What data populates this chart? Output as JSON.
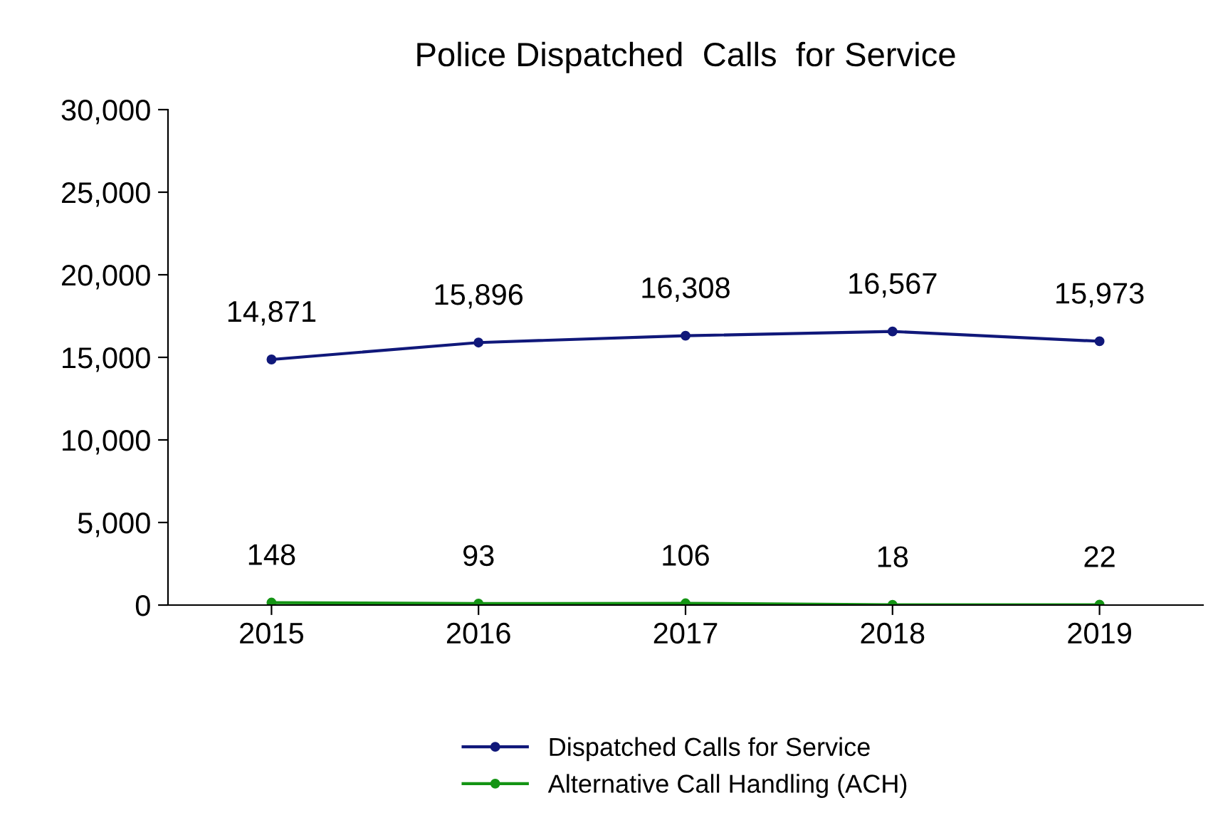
{
  "chart_data": {
    "type": "line",
    "title": "Police Dispatched  Calls  for Service",
    "categories": [
      "2015",
      "2016",
      "2017",
      "2018",
      "2019"
    ],
    "series": [
      {
        "name": "Dispatched Calls for Service",
        "color": "#10187a",
        "values": [
          14871,
          15896,
          16308,
          16567,
          15973
        ],
        "value_labels": [
          "14,871",
          "15,896",
          "16,308",
          "16,567",
          "15,973"
        ]
      },
      {
        "name": "Alternative Call Handling (ACH)",
        "color": "#149414",
        "values": [
          148,
          93,
          106,
          18,
          22
        ],
        "value_labels": [
          "148",
          "93",
          "106",
          "18",
          "22"
        ]
      }
    ],
    "ylim": [
      0,
      30000
    ],
    "yticks": [
      {
        "value": 0,
        "label": "0"
      },
      {
        "value": 5000,
        "label": "5,000"
      },
      {
        "value": 10000,
        "label": "10,000"
      },
      {
        "value": 15000,
        "label": "15,000"
      },
      {
        "value": 20000,
        "label": "20,000"
      },
      {
        "value": 25000,
        "label": "25,000"
      },
      {
        "value": 30000,
        "label": "30,000"
      }
    ],
    "grid": false,
    "legend": "bottom",
    "marker": "circle",
    "line_style": "solid"
  }
}
